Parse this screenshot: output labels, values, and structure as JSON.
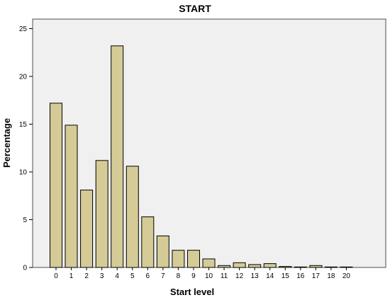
{
  "chart_data": {
    "type": "bar",
    "title": "START",
    "xlabel": "Start level",
    "ylabel": "Percentage",
    "categories": [
      "0",
      "1",
      "2",
      "3",
      "4",
      "5",
      "6",
      "7",
      "8",
      "9",
      "10",
      "11",
      "12",
      "13",
      "14",
      "15",
      "16",
      "17",
      "18",
      "20"
    ],
    "values": [
      17.2,
      14.9,
      8.1,
      11.2,
      23.2,
      10.6,
      5.3,
      3.3,
      1.8,
      1.8,
      0.9,
      0.2,
      0.5,
      0.3,
      0.4,
      0.1,
      0.05,
      0.2,
      0.05,
      0.05
    ],
    "ylim": [
      0,
      26
    ],
    "yticks": [
      0,
      5,
      10,
      15,
      20,
      25
    ],
    "grid": false,
    "colors": {
      "plot_background": "#f0f0f0",
      "bar_fill": "#d4cb96",
      "bar_stroke": "#000000",
      "frame": "#4d4d4d"
    }
  }
}
